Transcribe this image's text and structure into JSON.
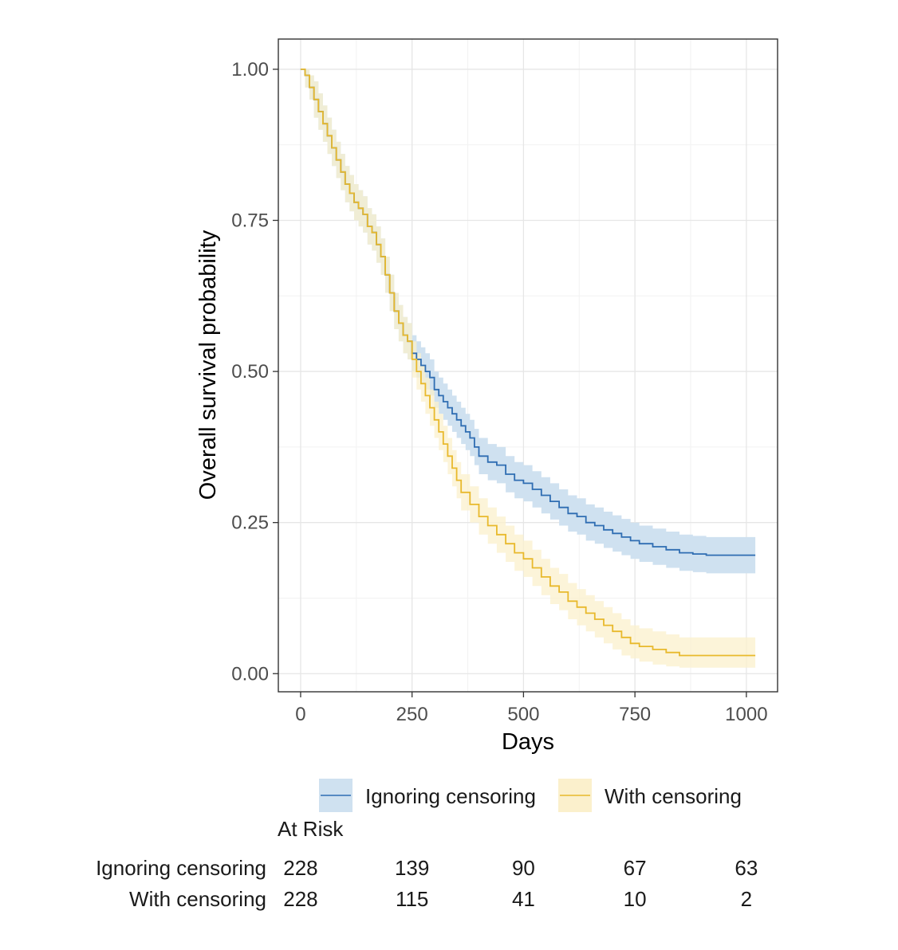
{
  "chart_data": {
    "type": "line",
    "subtype": "kaplan-meier",
    "xlabel": "Days",
    "ylabel": "Overall survival probability",
    "xlim": [
      -50,
      1070
    ],
    "ylim": [
      -0.03,
      1.05
    ],
    "x_ticks": [
      "0",
      "250",
      "500",
      "750",
      "1000"
    ],
    "x_tick_values": [
      0,
      250,
      500,
      750,
      1000
    ],
    "y_ticks": [
      "0.00",
      "0.25",
      "0.50",
      "0.75",
      "1.00"
    ],
    "y_tick_values": [
      0,
      0.25,
      0.5,
      0.75,
      1.0
    ],
    "grid": true,
    "legend_position": "bottom",
    "series": [
      {
        "name": "Ignoring censoring",
        "color": "#2f6db2",
        "fill": "#cfe1f0",
        "x": [
          0,
          10,
          20,
          30,
          40,
          50,
          60,
          70,
          80,
          90,
          100,
          110,
          120,
          130,
          140,
          150,
          160,
          170,
          180,
          190,
          200,
          210,
          220,
          230,
          240,
          250,
          260,
          270,
          280,
          290,
          300,
          310,
          320,
          330,
          340,
          350,
          360,
          370,
          380,
          390,
          400,
          420,
          440,
          460,
          480,
          500,
          520,
          540,
          560,
          580,
          600,
          620,
          640,
          660,
          680,
          700,
          720,
          740,
          760,
          790,
          820,
          850,
          880,
          910,
          940,
          1020
        ],
        "y": [
          1.0,
          0.99,
          0.97,
          0.95,
          0.93,
          0.91,
          0.89,
          0.87,
          0.85,
          0.83,
          0.81,
          0.795,
          0.78,
          0.77,
          0.76,
          0.74,
          0.73,
          0.71,
          0.69,
          0.66,
          0.63,
          0.6,
          0.58,
          0.56,
          0.55,
          0.53,
          0.52,
          0.51,
          0.5,
          0.49,
          0.47,
          0.46,
          0.45,
          0.44,
          0.43,
          0.42,
          0.41,
          0.4,
          0.39,
          0.375,
          0.36,
          0.35,
          0.345,
          0.33,
          0.32,
          0.315,
          0.305,
          0.295,
          0.285,
          0.275,
          0.265,
          0.26,
          0.25,
          0.245,
          0.238,
          0.232,
          0.226,
          0.22,
          0.215,
          0.21,
          0.205,
          0.2,
          0.198,
          0.196,
          0.196,
          0.196
        ],
        "lower": [
          1.0,
          0.97,
          0.95,
          0.92,
          0.9,
          0.88,
          0.86,
          0.84,
          0.82,
          0.8,
          0.78,
          0.765,
          0.75,
          0.74,
          0.73,
          0.71,
          0.7,
          0.68,
          0.66,
          0.63,
          0.6,
          0.57,
          0.55,
          0.53,
          0.52,
          0.5,
          0.49,
          0.48,
          0.47,
          0.46,
          0.44,
          0.43,
          0.42,
          0.41,
          0.4,
          0.39,
          0.38,
          0.37,
          0.36,
          0.345,
          0.33,
          0.32,
          0.315,
          0.3,
          0.29,
          0.285,
          0.275,
          0.265,
          0.255,
          0.245,
          0.235,
          0.23,
          0.22,
          0.215,
          0.208,
          0.202,
          0.196,
          0.19,
          0.185,
          0.18,
          0.175,
          0.17,
          0.168,
          0.166,
          0.166,
          0.166
        ],
        "upper": [
          1.0,
          1.0,
          0.99,
          0.98,
          0.96,
          0.94,
          0.92,
          0.9,
          0.88,
          0.86,
          0.84,
          0.825,
          0.81,
          0.8,
          0.79,
          0.77,
          0.76,
          0.74,
          0.72,
          0.69,
          0.66,
          0.63,
          0.61,
          0.59,
          0.58,
          0.56,
          0.55,
          0.54,
          0.53,
          0.52,
          0.5,
          0.49,
          0.48,
          0.47,
          0.46,
          0.45,
          0.44,
          0.43,
          0.42,
          0.405,
          0.39,
          0.38,
          0.375,
          0.36,
          0.35,
          0.345,
          0.335,
          0.325,
          0.315,
          0.305,
          0.295,
          0.29,
          0.28,
          0.275,
          0.268,
          0.262,
          0.256,
          0.25,
          0.245,
          0.24,
          0.235,
          0.23,
          0.228,
          0.226,
          0.226,
          0.226
        ]
      },
      {
        "name": "With censoring",
        "color": "#e8b92c",
        "fill": "#fbf0cc",
        "x": [
          0,
          10,
          20,
          30,
          40,
          50,
          60,
          70,
          80,
          90,
          100,
          110,
          120,
          130,
          140,
          150,
          160,
          170,
          180,
          190,
          200,
          210,
          220,
          230,
          240,
          250,
          260,
          270,
          280,
          290,
          300,
          310,
          320,
          330,
          340,
          350,
          360,
          380,
          400,
          420,
          440,
          460,
          480,
          500,
          520,
          540,
          560,
          580,
          600,
          620,
          640,
          660,
          680,
          700,
          720,
          740,
          760,
          790,
          820,
          850,
          880,
          910,
          940,
          1020
        ],
        "y": [
          1.0,
          0.99,
          0.97,
          0.95,
          0.93,
          0.91,
          0.89,
          0.87,
          0.85,
          0.83,
          0.81,
          0.795,
          0.78,
          0.77,
          0.76,
          0.74,
          0.73,
          0.71,
          0.69,
          0.66,
          0.63,
          0.6,
          0.58,
          0.56,
          0.55,
          0.52,
          0.5,
          0.48,
          0.46,
          0.44,
          0.42,
          0.4,
          0.38,
          0.36,
          0.34,
          0.32,
          0.3,
          0.28,
          0.26,
          0.245,
          0.23,
          0.215,
          0.2,
          0.19,
          0.175,
          0.16,
          0.145,
          0.135,
          0.12,
          0.11,
          0.1,
          0.09,
          0.08,
          0.07,
          0.06,
          0.05,
          0.045,
          0.04,
          0.035,
          0.03,
          0.03,
          0.03,
          0.03,
          0.03
        ],
        "lower": [
          1.0,
          0.97,
          0.95,
          0.92,
          0.9,
          0.88,
          0.86,
          0.84,
          0.82,
          0.8,
          0.78,
          0.765,
          0.75,
          0.74,
          0.73,
          0.71,
          0.7,
          0.68,
          0.66,
          0.63,
          0.6,
          0.57,
          0.55,
          0.53,
          0.52,
          0.49,
          0.47,
          0.45,
          0.43,
          0.41,
          0.39,
          0.37,
          0.35,
          0.33,
          0.31,
          0.29,
          0.27,
          0.25,
          0.23,
          0.215,
          0.2,
          0.185,
          0.17,
          0.16,
          0.145,
          0.13,
          0.115,
          0.105,
          0.09,
          0.08,
          0.07,
          0.06,
          0.05,
          0.04,
          0.03,
          0.025,
          0.02,
          0.015,
          0.012,
          0.01,
          0.01,
          0.01,
          0.01,
          0.01
        ],
        "upper": [
          1.0,
          1.0,
          0.99,
          0.98,
          0.96,
          0.94,
          0.92,
          0.9,
          0.88,
          0.86,
          0.84,
          0.825,
          0.81,
          0.8,
          0.79,
          0.77,
          0.76,
          0.74,
          0.72,
          0.69,
          0.66,
          0.63,
          0.61,
          0.59,
          0.58,
          0.55,
          0.53,
          0.51,
          0.49,
          0.47,
          0.45,
          0.43,
          0.41,
          0.39,
          0.37,
          0.35,
          0.33,
          0.31,
          0.29,
          0.275,
          0.26,
          0.245,
          0.23,
          0.22,
          0.205,
          0.19,
          0.175,
          0.165,
          0.15,
          0.14,
          0.13,
          0.12,
          0.11,
          0.1,
          0.09,
          0.08,
          0.075,
          0.07,
          0.065,
          0.06,
          0.06,
          0.06,
          0.06,
          0.06
        ]
      }
    ],
    "risk_table": {
      "title": "At Risk",
      "times": [
        0,
        250,
        500,
        750,
        1000
      ],
      "rows": [
        {
          "label": "Ignoring censoring",
          "counts": [
            "228",
            "139",
            "90",
            "67",
            "63"
          ]
        },
        {
          "label": "With censoring",
          "counts": [
            "228",
            "115",
            "41",
            "10",
            "2"
          ]
        }
      ]
    }
  }
}
